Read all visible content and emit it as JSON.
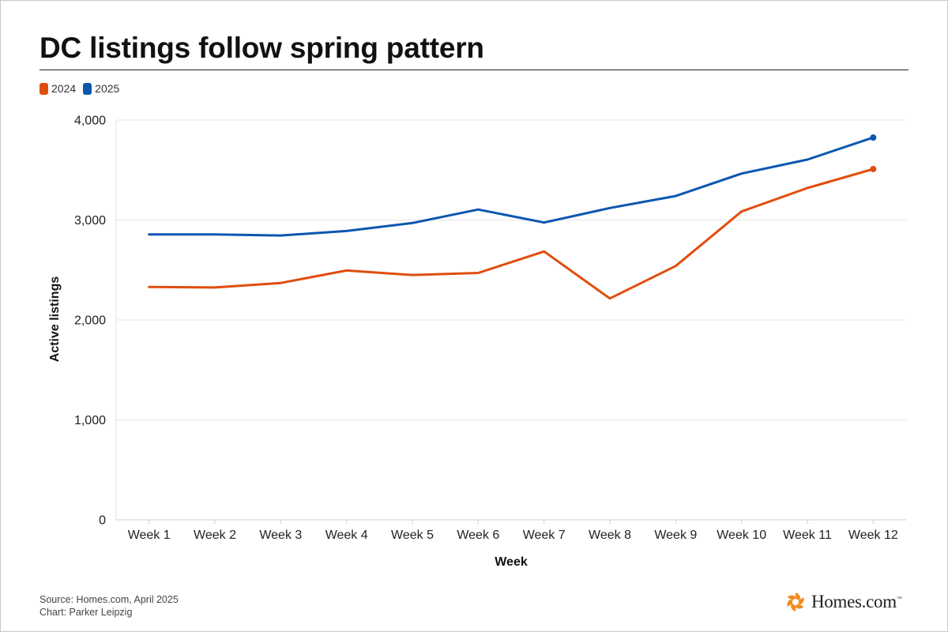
{
  "header": {
    "title": "DC listings follow spring pattern"
  },
  "colors": {
    "series_2024": "#e04e0f",
    "series_2025": "#0b57b0",
    "grid": "#e6e6e6",
    "logo_accent": "#f08c1e"
  },
  "chart_data": {
    "type": "line",
    "title": "DC listings follow spring pattern",
    "xlabel": "Week",
    "ylabel": "Active listings",
    "categories": [
      "Week 1",
      "Week 2",
      "Week 3",
      "Week 4",
      "Week 5",
      "Week 6",
      "Week 7",
      "Week 8",
      "Week 9",
      "Week 10",
      "Week 11",
      "Week 12"
    ],
    "ylim": [
      0,
      4000
    ],
    "yticks": [
      0,
      1000,
      2000,
      3000,
      4000
    ],
    "ytick_labels": [
      "0",
      "1,000",
      "2,000",
      "3,000",
      "4,000"
    ],
    "grid": true,
    "legend_position": "top-left",
    "series": [
      {
        "name": "2024",
        "color": "#e04e0f",
        "values": [
          2330,
          2325,
          2370,
          2495,
          2450,
          2470,
          2685,
          2215,
          2540,
          3085,
          3320,
          3510
        ]
      },
      {
        "name": "2025",
        "color": "#0b57b0",
        "values": [
          2855,
          2855,
          2845,
          2890,
          2970,
          3105,
          2975,
          3120,
          3240,
          3465,
          3605,
          3825
        ]
      }
    ]
  },
  "footer": {
    "source": "Source: Homes.com, April 2025",
    "credit": "Chart: Parker Leipzig"
  },
  "logo": {
    "text": "Homes.com",
    "icon": "homes-logo-icon"
  }
}
